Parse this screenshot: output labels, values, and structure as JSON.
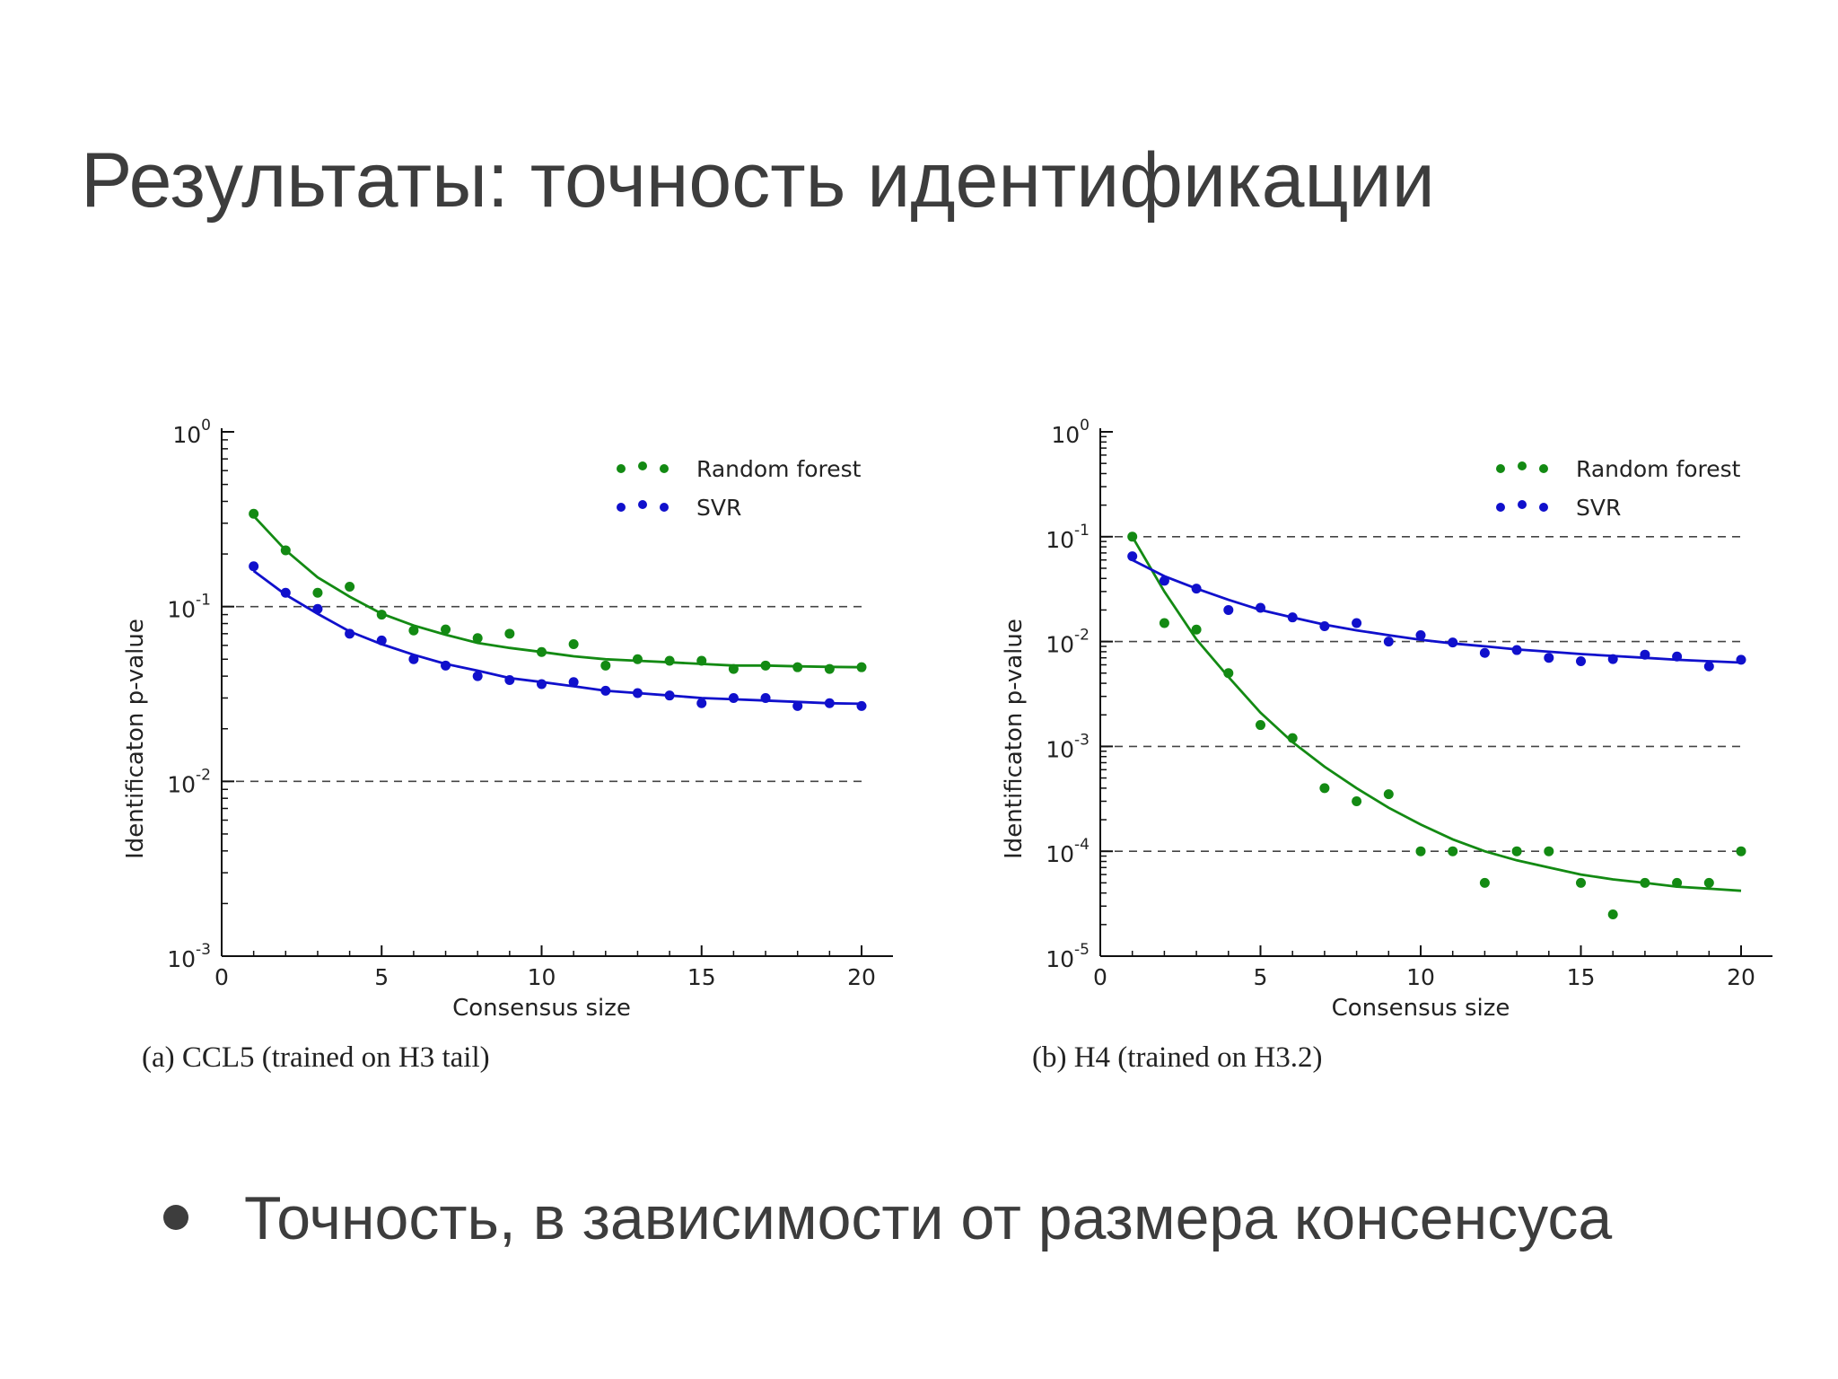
{
  "slide": {
    "title": "Результаты: точность идентификации",
    "bullet": "Точность, в зависимости от размера консенсуса"
  },
  "chart_data": [
    {
      "type": "scatter",
      "caption": "(a) CCL5 (trained on H3 tail)",
      "xlabel": "Consensus size",
      "ylabel": "Identificaton p-value",
      "xlim": [
        0,
        20
      ],
      "xticks": [
        0,
        5,
        10,
        15,
        20
      ],
      "yscale": "log",
      "ylim": [
        0.001,
        1
      ],
      "yticks": [
        {
          "base": "10",
          "exp": "0",
          "value": 1
        },
        {
          "base": "10",
          "exp": "-1",
          "value": 0.1
        },
        {
          "base": "10",
          "exp": "-2",
          "value": 0.01
        },
        {
          "base": "10",
          "exp": "-3",
          "value": 0.001
        }
      ],
      "reference_lines": [
        0.1,
        0.01
      ],
      "legend_position": "top-right",
      "series": [
        {
          "name": "Random forest",
          "color": "#138a13",
          "x": [
            1,
            2,
            3,
            4,
            5,
            6,
            7,
            8,
            9,
            10,
            11,
            12,
            13,
            14,
            15,
            16,
            17,
            18,
            19,
            20
          ],
          "y": [
            0.34,
            0.21,
            0.12,
            0.13,
            0.09,
            0.073,
            0.074,
            0.066,
            0.07,
            0.055,
            0.061,
            0.046,
            0.05,
            0.049,
            0.049,
            0.044,
            0.046,
            0.045,
            0.044,
            0.045
          ],
          "fit": [
            0.33,
            0.21,
            0.147,
            0.114,
            0.091,
            0.078,
            0.069,
            0.062,
            0.058,
            0.055,
            0.052,
            0.05,
            0.049,
            0.048,
            0.047,
            0.046,
            0.046,
            0.0455,
            0.0452,
            0.045
          ]
        },
        {
          "name": "SVR",
          "color": "#1010cc",
          "x": [
            1,
            2,
            3,
            4,
            5,
            6,
            7,
            8,
            9,
            10,
            11,
            12,
            13,
            14,
            15,
            16,
            17,
            18,
            19,
            20
          ],
          "y": [
            0.17,
            0.12,
            0.097,
            0.07,
            0.064,
            0.05,
            0.046,
            0.04,
            0.038,
            0.036,
            0.037,
            0.033,
            0.032,
            0.031,
            0.028,
            0.03,
            0.03,
            0.027,
            0.028,
            0.027
          ],
          "fit": [
            0.16,
            0.117,
            0.091,
            0.072,
            0.061,
            0.053,
            0.047,
            0.043,
            0.039,
            0.037,
            0.035,
            0.033,
            0.032,
            0.031,
            0.03,
            0.0295,
            0.029,
            0.0285,
            0.028,
            0.0278
          ]
        }
      ]
    },
    {
      "type": "scatter",
      "caption": "(b) H4 (trained on H3.2)",
      "xlabel": "Consensus size",
      "ylabel": "Identificaton p-value",
      "xlim": [
        0,
        20
      ],
      "xticks": [
        0,
        5,
        10,
        15,
        20
      ],
      "yscale": "log",
      "ylim": [
        1e-05,
        1
      ],
      "yticks": [
        {
          "base": "10",
          "exp": "0",
          "value": 1
        },
        {
          "base": "10",
          "exp": "-1",
          "value": 0.1
        },
        {
          "base": "10",
          "exp": "-2",
          "value": 0.01
        },
        {
          "base": "10",
          "exp": "-3",
          "value": 0.001
        },
        {
          "base": "10",
          "exp": "-4",
          "value": 0.0001
        },
        {
          "base": "10",
          "exp": "-5",
          "value": 1e-05
        }
      ],
      "reference_lines": [
        0.1,
        0.01,
        0.001,
        0.0001
      ],
      "legend_position": "top-right",
      "series": [
        {
          "name": "Random forest",
          "color": "#138a13",
          "x": [
            1,
            2,
            3,
            4,
            5,
            6,
            7,
            8,
            9,
            10,
            11,
            12,
            13,
            14,
            15,
            16,
            17,
            18,
            19,
            20
          ],
          "y": [
            0.1,
            0.015,
            0.013,
            0.005,
            0.0016,
            0.0012,
            0.0004,
            0.0003,
            0.00035,
            0.0001,
            0.0001,
            5e-05,
            0.0001,
            0.0001,
            5e-05,
            2.5e-05,
            5e-05,
            5e-05,
            5e-05,
            0.0001
          ],
          "fit": [
            0.1,
            0.03,
            0.0105,
            0.0046,
            0.0021,
            0.0011,
            0.00064,
            0.0004,
            0.00026,
            0.00018,
            0.00013,
            0.0001,
            8.2e-05,
            7e-05,
            6e-05,
            5.4e-05,
            5e-05,
            4.6e-05,
            4.4e-05,
            4.2e-05
          ]
        },
        {
          "name": "SVR",
          "color": "#1010cc",
          "x": [
            1,
            2,
            3,
            4,
            5,
            6,
            7,
            8,
            9,
            10,
            11,
            12,
            13,
            14,
            15,
            16,
            17,
            18,
            19,
            20
          ],
          "y": [
            0.065,
            0.038,
            0.032,
            0.02,
            0.021,
            0.017,
            0.014,
            0.015,
            0.01,
            0.0115,
            0.0098,
            0.0078,
            0.0083,
            0.007,
            0.0065,
            0.0068,
            0.0075,
            0.0072,
            0.0058,
            0.0067
          ],
          "fit": [
            0.06,
            0.042,
            0.032,
            0.025,
            0.02,
            0.017,
            0.0145,
            0.0128,
            0.0115,
            0.0104,
            0.0096,
            0.009,
            0.0084,
            0.008,
            0.0076,
            0.0073,
            0.007,
            0.0067,
            0.0065,
            0.0063
          ]
        }
      ]
    }
  ]
}
